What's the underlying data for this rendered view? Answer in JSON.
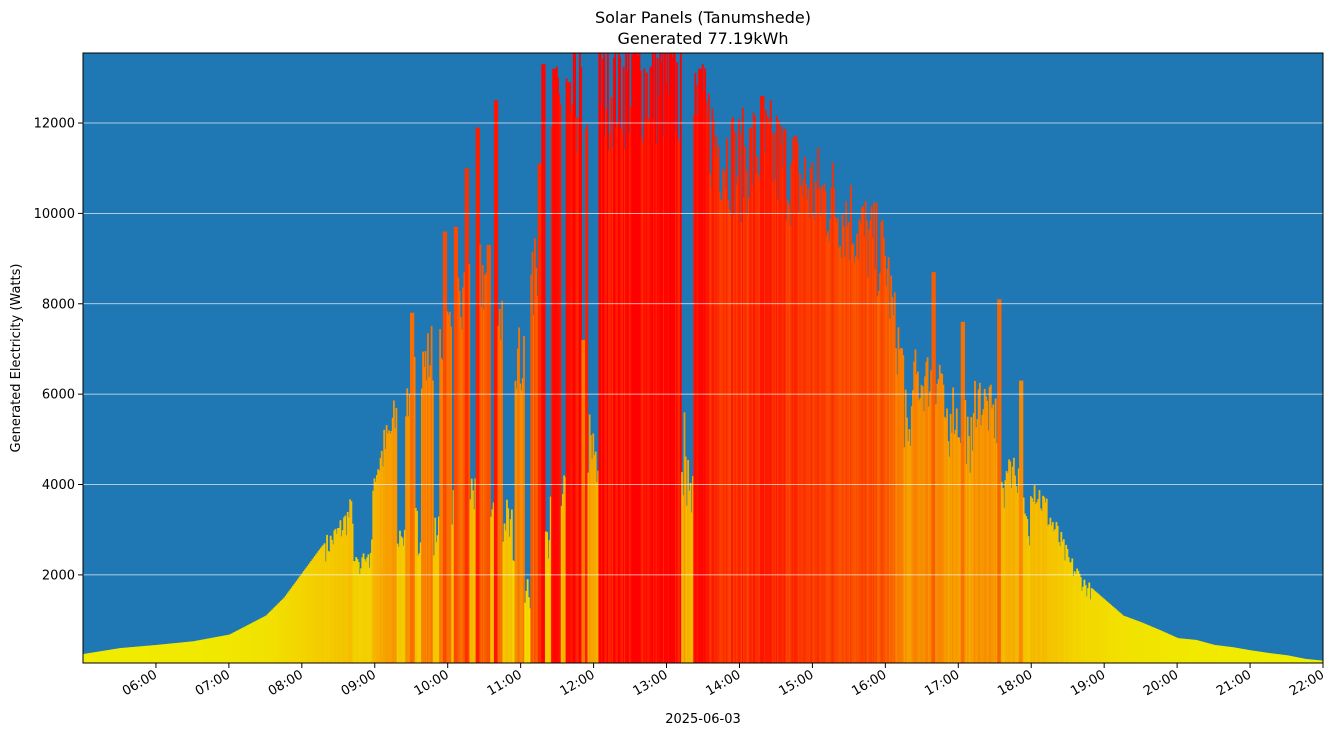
{
  "chart_data": {
    "type": "bar",
    "title": "Solar Panels (Tanumshede)",
    "subtitle": "Generated 77.19kWh",
    "xlabel": "2025-06-03",
    "ylabel": "Generated Electricity (Watts)",
    "ylim": [
      50,
      13550
    ],
    "xlim_hours": [
      5.0,
      22.0
    ],
    "y_ticks": [
      2000,
      4000,
      6000,
      8000,
      10000,
      12000
    ],
    "y_tick_labels": [
      "2000",
      "4000",
      "6000",
      "8000",
      "10000",
      "12000"
    ],
    "x_ticks_hours": [
      6,
      7,
      8,
      9,
      10,
      11,
      12,
      13,
      14,
      15,
      16,
      17,
      18,
      19,
      20,
      21,
      22
    ],
    "x_tick_labels": [
      "06:00",
      "07:00",
      "08:00",
      "09:00",
      "10:00",
      "11:00",
      "12:00",
      "13:00",
      "14:00",
      "15:00",
      "16:00",
      "17:00",
      "18:00",
      "19:00",
      "20:00",
      "21:00",
      "22:00"
    ],
    "grid": "horizontal",
    "background_color": "#1f77b4",
    "colormap": [
      "#f0f000",
      "#f5c000",
      "#f88000",
      "#fb4000",
      "#ff0000"
    ],
    "profile_points": [
      [
        5.0,
        250
      ],
      [
        5.5,
        380
      ],
      [
        6.0,
        450
      ],
      [
        6.5,
        530
      ],
      [
        7.0,
        680
      ],
      [
        7.5,
        1100
      ],
      [
        7.75,
        1500
      ],
      [
        8.0,
        2050
      ],
      [
        8.25,
        2600
      ],
      [
        8.5,
        3100
      ],
      [
        8.75,
        3800
      ],
      [
        9.0,
        4500
      ],
      [
        9.25,
        5600
      ],
      [
        9.5,
        6500
      ],
      [
        9.75,
        7200
      ],
      [
        10.0,
        7800
      ],
      [
        10.25,
        8500
      ],
      [
        10.5,
        9100
      ],
      [
        10.75,
        8000
      ],
      [
        11.0,
        7000
      ],
      [
        11.25,
        9800
      ],
      [
        11.5,
        12800
      ],
      [
        11.75,
        13200
      ],
      [
        12.0,
        13550
      ],
      [
        12.5,
        13550
      ],
      [
        13.0,
        13550
      ],
      [
        13.25,
        13200
      ],
      [
        13.5,
        12600
      ],
      [
        13.75,
        12000
      ],
      [
        14.0,
        11600
      ],
      [
        14.25,
        12000
      ],
      [
        14.5,
        11800
      ],
      [
        14.75,
        11400
      ],
      [
        15.0,
        11000
      ],
      [
        15.25,
        10800
      ],
      [
        15.5,
        10400
      ],
      [
        15.75,
        9900
      ],
      [
        16.0,
        9400
      ],
      [
        16.1,
        8000
      ],
      [
        16.25,
        6800
      ],
      [
        16.5,
        6600
      ],
      [
        16.75,
        6800
      ],
      [
        17.0,
        5600
      ],
      [
        17.25,
        6300
      ],
      [
        17.5,
        5700
      ],
      [
        17.75,
        4500
      ],
      [
        18.0,
        4300
      ],
      [
        18.25,
        3400
      ],
      [
        18.5,
        2400
      ],
      [
        18.75,
        1800
      ],
      [
        19.0,
        1450
      ],
      [
        19.25,
        1100
      ],
      [
        19.5,
        950
      ],
      [
        19.75,
        780
      ],
      [
        20.0,
        600
      ],
      [
        20.25,
        560
      ],
      [
        20.5,
        450
      ],
      [
        20.75,
        400
      ],
      [
        21.0,
        330
      ],
      [
        21.25,
        270
      ],
      [
        21.5,
        220
      ],
      [
        21.75,
        140
      ],
      [
        22.0,
        100
      ]
    ],
    "dips": [
      [
        8.7,
        8.95,
        0.55
      ],
      [
        9.3,
        9.4,
        0.45
      ],
      [
        9.55,
        9.62,
        0.4
      ],
      [
        9.8,
        9.88,
        0.35
      ],
      [
        10.05,
        10.12,
        0.45
      ],
      [
        10.3,
        10.38,
        0.4
      ],
      [
        10.55,
        10.62,
        0.35
      ],
      [
        10.75,
        10.9,
        0.35
      ],
      [
        11.05,
        11.12,
        0.15
      ],
      [
        11.3,
        11.4,
        0.25
      ],
      [
        11.55,
        11.6,
        0.25
      ],
      [
        11.9,
        12.05,
        0.3
      ],
      [
        13.2,
        13.35,
        0.3
      ],
      [
        16.25,
        16.35,
        0.75
      ],
      [
        16.8,
        16.88,
        0.75
      ],
      [
        17.1,
        17.2,
        0.8
      ],
      [
        17.55,
        17.65,
        0.75
      ],
      [
        17.9,
        17.98,
        0.65
      ]
    ],
    "spikes": [
      [
        9.5,
        7800
      ],
      [
        9.95,
        9600
      ],
      [
        10.1,
        9700
      ],
      [
        10.25,
        11000
      ],
      [
        10.4,
        11900
      ],
      [
        10.55,
        9300
      ],
      [
        10.65,
        12500
      ],
      [
        11.25,
        11100
      ],
      [
        11.3,
        13300
      ],
      [
        11.45,
        13200
      ],
      [
        11.65,
        12900
      ],
      [
        11.85,
        7200
      ],
      [
        12.55,
        13550
      ],
      [
        13.45,
        13200
      ],
      [
        14.3,
        12600
      ],
      [
        16.65,
        8700
      ],
      [
        17.05,
        7600
      ],
      [
        17.55,
        8100
      ],
      [
        17.85,
        6300
      ]
    ]
  }
}
